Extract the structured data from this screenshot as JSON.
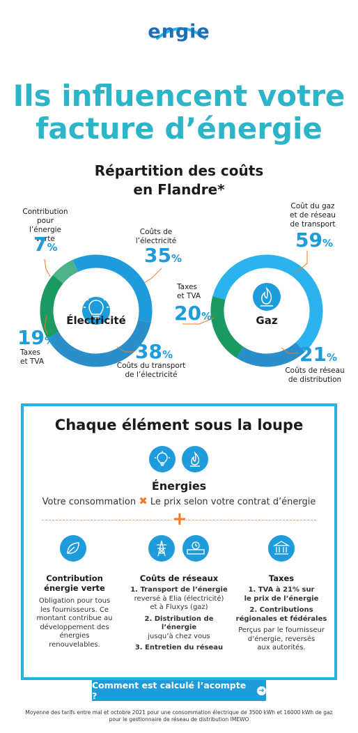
{
  "brand": {
    "logo_text": "engie"
  },
  "headline": {
    "line1": "Ils influencent votre",
    "line2": "facture d’énergie"
  },
  "section_title": {
    "line1": "Répartition des coûts",
    "line2": "en Flandre*"
  },
  "electricity": {
    "center_label": "Électricité",
    "icon": "lightbulb-icon",
    "segments": [
      {
        "label_line1": "Coûts de",
        "label_line2": "l’électricité",
        "value": "35",
        "unit": "%",
        "color": "#1e9bdb"
      },
      {
        "label_line1": "Coûts du transport",
        "label_line2": "de l’électricité",
        "value": "38",
        "unit": "%",
        "color": "#2a8fc9"
      },
      {
        "label_line1": "Taxes",
        "label_line2": "et TVA",
        "value": "19",
        "unit": "%",
        "color": "#1a9960"
      },
      {
        "label_line1": "Contribution",
        "label_line2": "pour l’énergie",
        "label_line3": "verte",
        "value": "7",
        "unit": "%",
        "color": "#4fb38a"
      }
    ]
  },
  "gas": {
    "center_label": "Gaz",
    "icon": "flame-icon",
    "segments": [
      {
        "label_line1": "Coût du gaz",
        "label_line2": "et de réseau",
        "label_line3": "de transport",
        "value": "59",
        "unit": "%",
        "color": "#2ab3ee"
      },
      {
        "label_line1": "Coûts de réseau",
        "label_line2": "de distribution",
        "value": "21",
        "unit": "%",
        "color": "#2a8fc9"
      },
      {
        "label_line1": "Taxes",
        "label_line2": "et TVA",
        "value": "20",
        "unit": "%",
        "color": "#1a9960"
      }
    ]
  },
  "loupe": {
    "title": "Chaque élément sous la loupe",
    "energies_title": "Énergies",
    "consumption": "Votre consommation",
    "times": "✖",
    "price": "Le prix selon votre contrat d’énergie",
    "plus": "+",
    "columns": [
      {
        "title_line1": "Contribution",
        "title_line2": "énergie verte",
        "text": [
          "Obligation pour tous",
          "les fournisseurs. Ce",
          "montant contribue au",
          "développement des",
          "énergies renouvelables."
        ]
      },
      {
        "title_line1": "Coûts de réseaux",
        "item1": [
          "1. Transport de l’énergie",
          "reversé à Elia (électricité)",
          "et à Fluxys (gaz)"
        ],
        "item2": [
          "2. Distribution de l’énergie",
          "jusqu’à chez vous"
        ],
        "item3": "3. Entretien du réseau"
      },
      {
        "title_line1": "Taxes",
        "item1": [
          "1. TVA à 21% sur",
          "le prix de l’énergie"
        ],
        "item2": [
          "2. Contributions",
          "régionales et fédérales"
        ],
        "text": [
          "Perçus par le fournisseur",
          "d’énergie, reversés",
          "aux autorités."
        ]
      }
    ]
  },
  "cta": {
    "label": "Comment est calculé l’acompte ?",
    "arrow": "➔"
  },
  "footnote": {
    "line1": "Moyenne des tarifs entre mai et octobre 2021 pour une consommation électrique de 3500 kWh et 16000 kWh de gaz",
    "line2": "pour le gestionnaire de réseau de distribution IMEWO"
  },
  "colors": {
    "accent": "#1e9bdb",
    "headline": "#2cb5c8",
    "orange": "#f07a28",
    "green": "#1a9960"
  },
  "chart_data": [
    {
      "type": "pie",
      "title": "Électricité",
      "categories": [
        "Coûts de l’électricité",
        "Coûts du transport de l’électricité",
        "Taxes et TVA",
        "Contribution pour l’énergie verte"
      ],
      "values": [
        35,
        38,
        19,
        7
      ]
    },
    {
      "type": "pie",
      "title": "Gaz",
      "categories": [
        "Coût du gaz et de réseau de transport",
        "Coûts de réseau de distribution",
        "Taxes et TVA"
      ],
      "values": [
        59,
        21,
        20
      ]
    }
  ]
}
